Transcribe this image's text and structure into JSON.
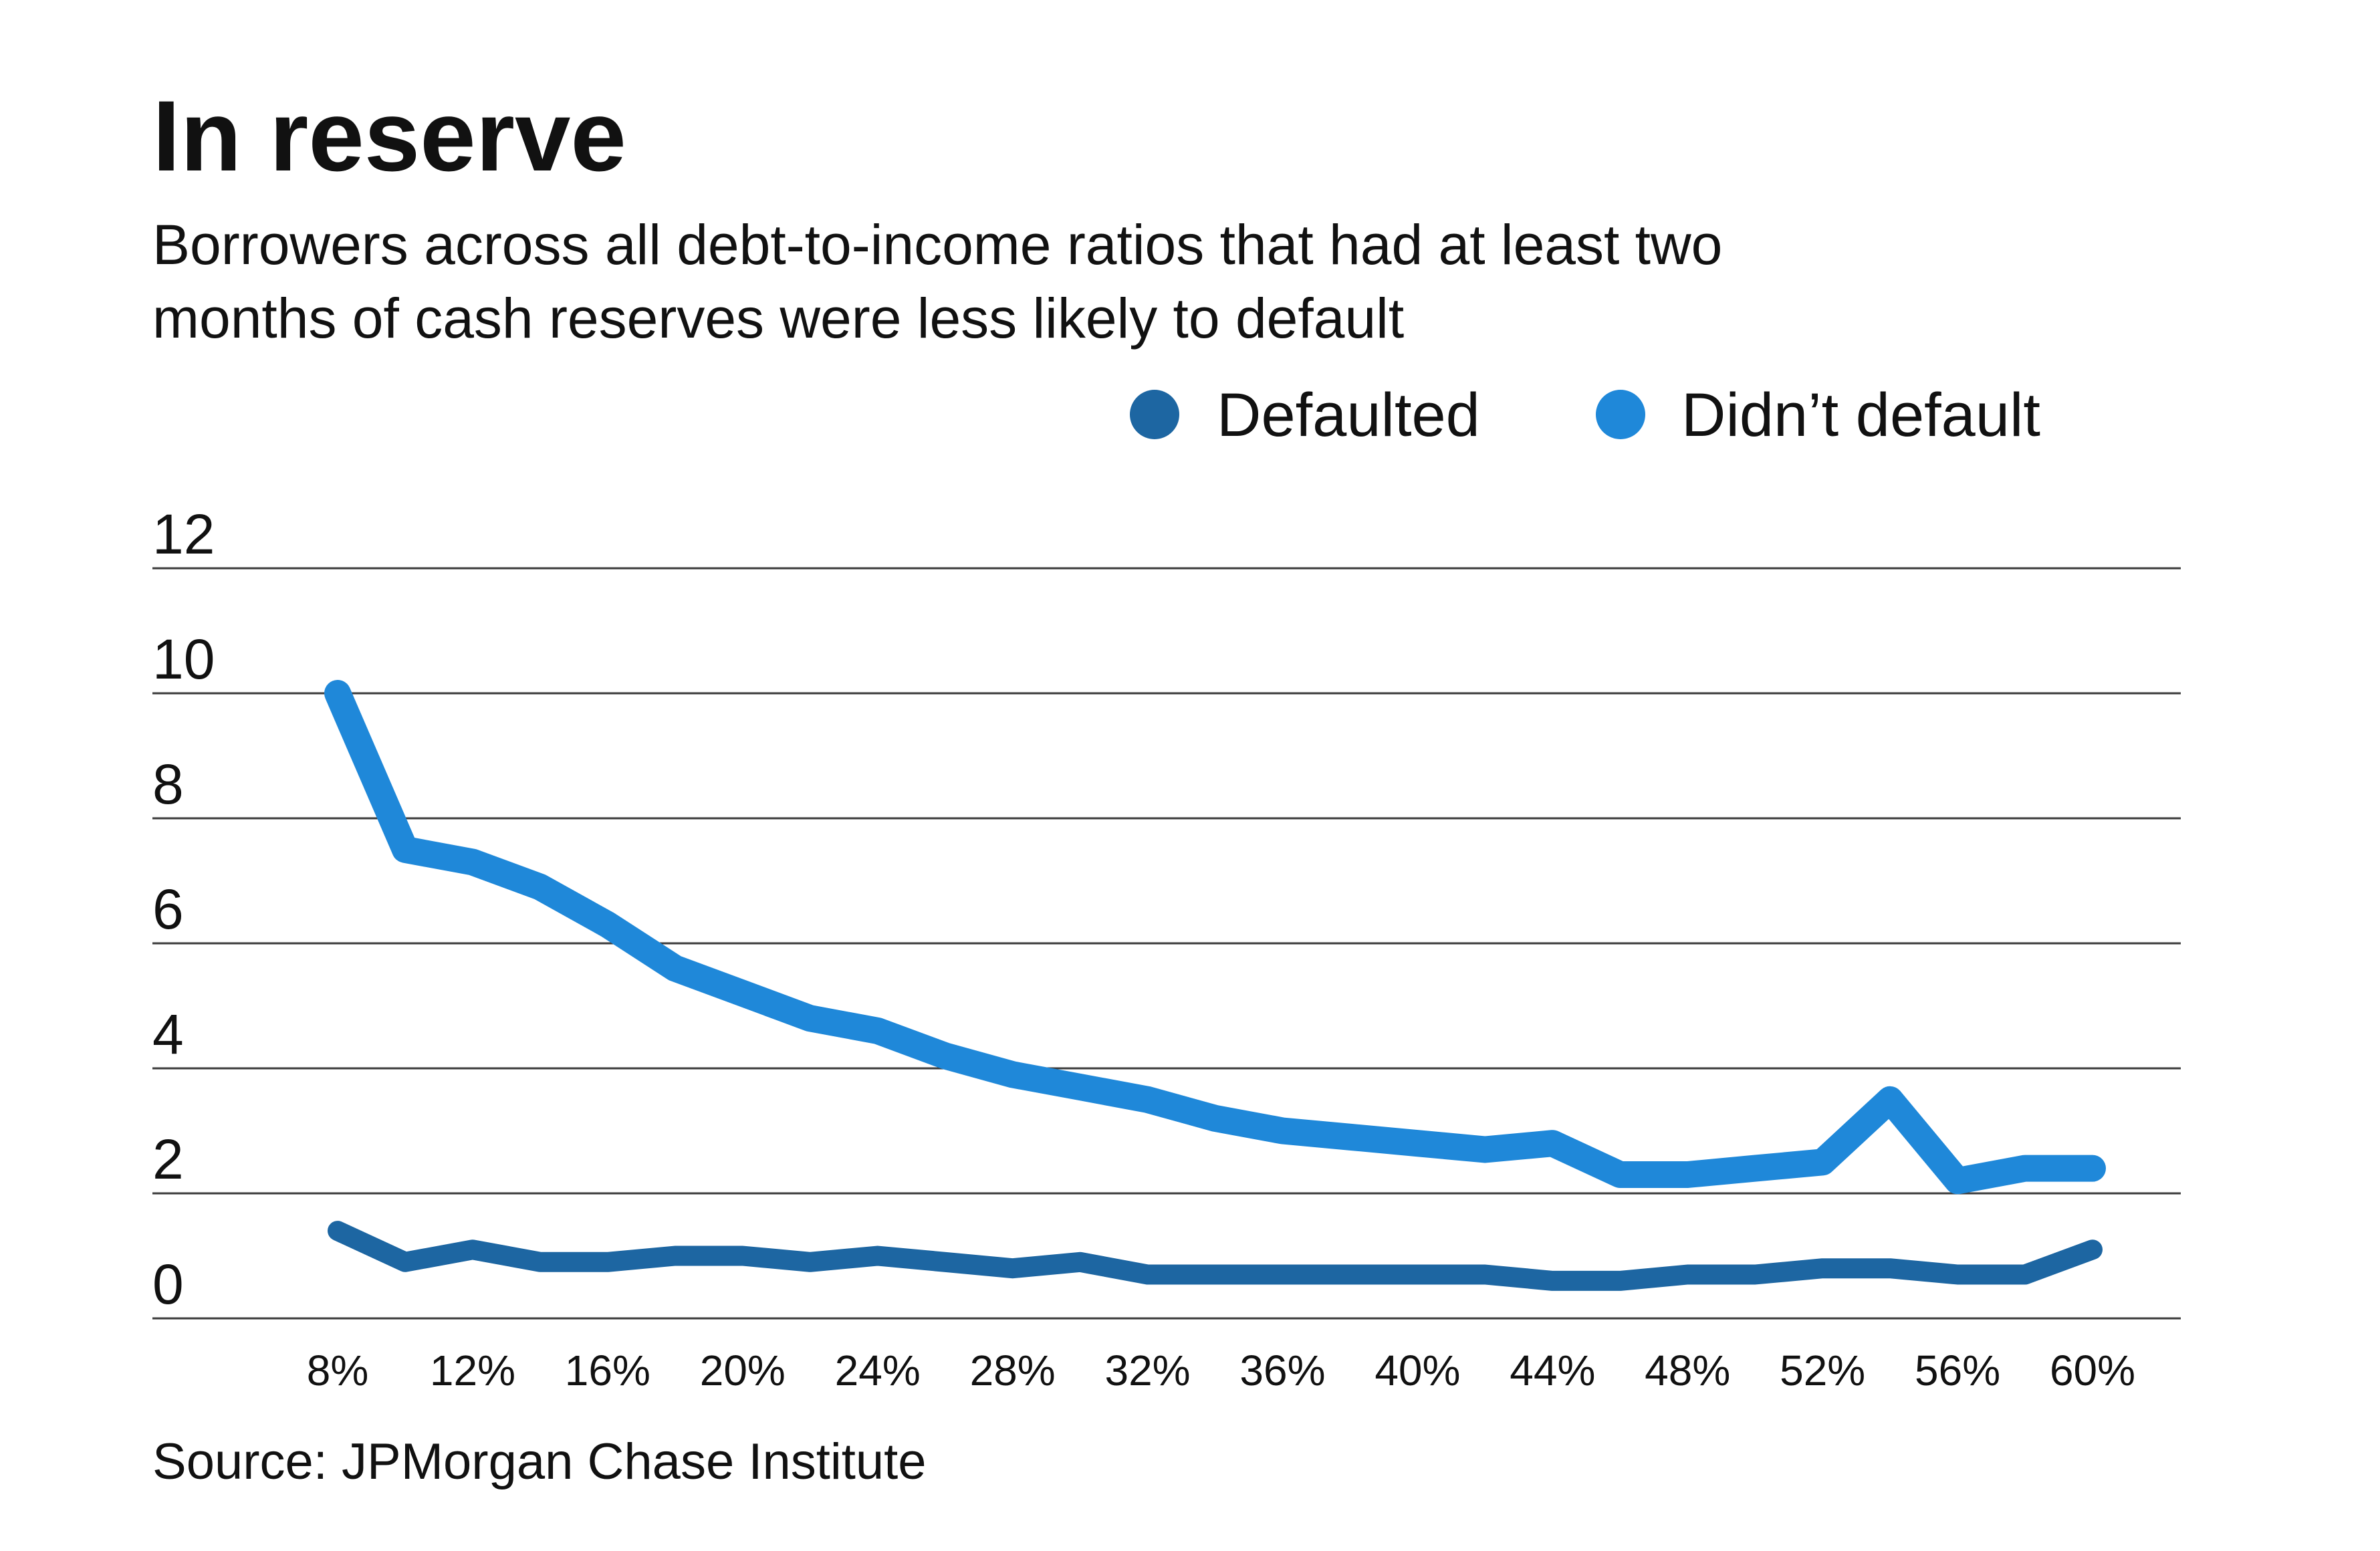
{
  "title": "In reserve",
  "subtitle": {
    "line1": "Borrowers across all debt-to-income ratios that had at least two",
    "line2": "months of cash reserves were less likely to default"
  },
  "source": "Source: JPMorgan Chase Institute",
  "legend": [
    {
      "label": "Defaulted",
      "color": "#1d66a2"
    },
    {
      "label": "Didn’t default",
      "color": "#1f88d9"
    }
  ],
  "chart_data": {
    "type": "line",
    "x": [
      8,
      10,
      12,
      14,
      16,
      18,
      20,
      22,
      24,
      26,
      28,
      30,
      32,
      34,
      36,
      38,
      40,
      42,
      44,
      46,
      48,
      50,
      52,
      54,
      56,
      58,
      60
    ],
    "x_unit": "%",
    "xticks": [
      8,
      12,
      16,
      20,
      24,
      28,
      32,
      36,
      40,
      44,
      48,
      52,
      56,
      60
    ],
    "xtick_labels": [
      "8%",
      "12%",
      "16%",
      "20%",
      "24%",
      "28%",
      "32%",
      "36%",
      "40%",
      "44%",
      "48%",
      "52%",
      "56%",
      "60%"
    ],
    "yticks": [
      0,
      2,
      4,
      6,
      8,
      10,
      12
    ],
    "ylim": [
      0,
      12
    ],
    "grid": true,
    "legend_position": "top-right",
    "series": [
      {
        "name": "Defaulted",
        "color": "#1d66a2",
        "values": [
          1.4,
          0.9,
          1.1,
          0.9,
          0.9,
          1.0,
          1.0,
          0.9,
          1.0,
          0.9,
          0.8,
          0.9,
          0.7,
          0.7,
          0.7,
          0.7,
          0.7,
          0.7,
          0.6,
          0.6,
          0.7,
          0.7,
          0.8,
          0.8,
          0.7,
          0.7,
          1.1
        ]
      },
      {
        "name": "Didn’t default",
        "color": "#1f88d9",
        "values": [
          10.0,
          7.5,
          7.3,
          6.9,
          6.3,
          5.6,
          5.2,
          4.8,
          4.6,
          4.2,
          3.9,
          3.7,
          3.5,
          3.2,
          3.0,
          2.9,
          2.8,
          2.7,
          2.8,
          2.3,
          2.3,
          2.4,
          2.5,
          3.5,
          2.2,
          2.4,
          2.4
        ]
      }
    ]
  }
}
